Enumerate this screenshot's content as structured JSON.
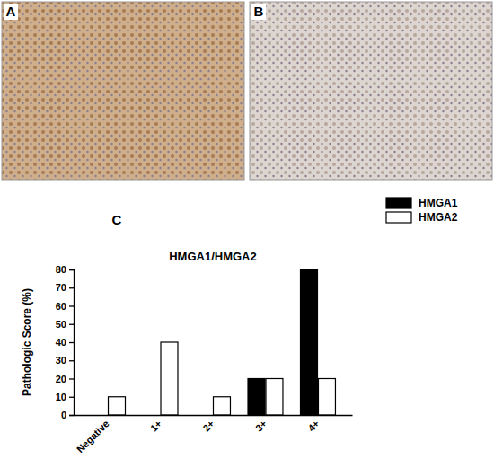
{
  "figure_labels": [
    "A",
    "B",
    "C"
  ],
  "chart_data": {
    "type": "bar",
    "title": "HMGA1/HMGA2",
    "y_label": "Pathologic Score (%)",
    "categories": [
      "Negative",
      "1+",
      "2+",
      "3+",
      "4+"
    ],
    "series": [
      {
        "name": "HMGA1",
        "color": "#000000",
        "values": [
          0,
          0,
          0,
          20,
          80
        ]
      },
      {
        "name": "HMGA2",
        "color": "#ffffff",
        "values": [
          10,
          40,
          10,
          20,
          20
        ]
      }
    ],
    "ylim": [
      0,
      80
    ],
    "yticks": [
      0,
      10,
      20,
      30,
      40,
      50,
      60,
      70,
      80
    ],
    "grid": false,
    "legend": "upper right"
  }
}
